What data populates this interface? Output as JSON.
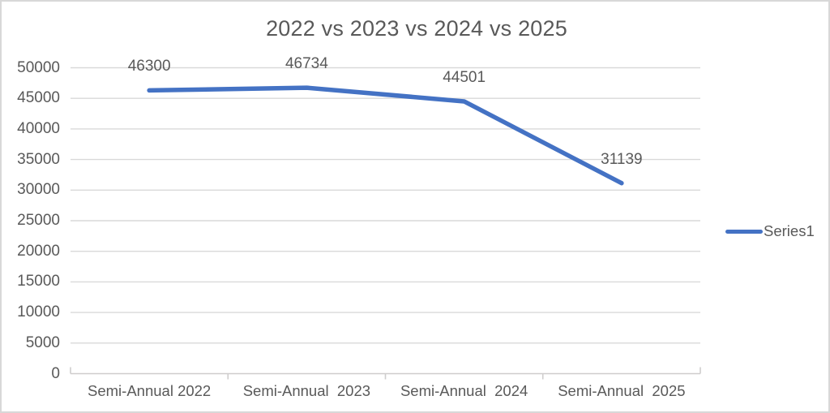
{
  "chart_data": {
    "type": "line",
    "title": "2022 vs 2023 vs 2024 vs 2025",
    "categories": [
      "Semi-Annual 2022",
      "Semi-Annual  2023",
      "Semi-Annual  2024",
      "Semi-Annual  2025"
    ],
    "series": [
      {
        "name": "Series1",
        "values": [
          46300,
          46734,
          44501,
          31139
        ]
      }
    ],
    "data_labels": [
      "46300",
      "46734",
      "44501",
      "31139"
    ],
    "ylim": [
      0,
      50000
    ],
    "ytick_step": 5000,
    "ytick_labels": [
      "0",
      "5000",
      "10000",
      "15000",
      "20000",
      "25000",
      "30000",
      "35000",
      "40000",
      "45000",
      "50000"
    ],
    "grid": true,
    "legend_position": "right",
    "colors": {
      "series": "#4472C4",
      "text": "#595959",
      "gridline": "#D9D9D9",
      "axis_line": "#CFCDCD",
      "background": "#FFFFFF",
      "border": "#D8D8D8"
    }
  }
}
